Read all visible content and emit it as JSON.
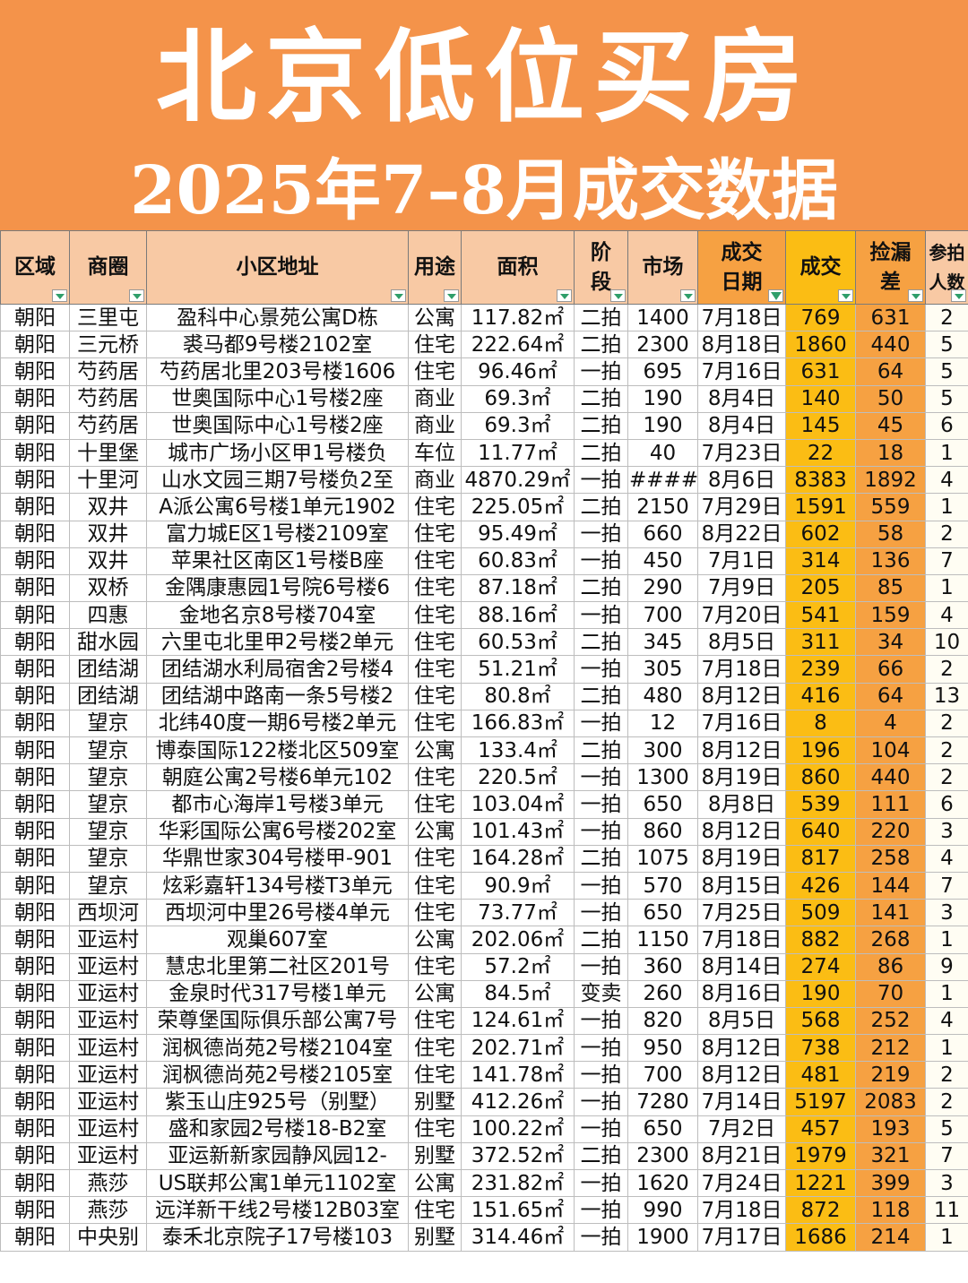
{
  "banner": {
    "title": "北京低位买房",
    "subtitle": "2025年7–8月成交数据"
  },
  "colors": {
    "banner_bg": "#f4934a",
    "header_bg": "#f8c9a4",
    "price_col_bg": "#fbbd14",
    "gap_col_bg": "#f6a142"
  },
  "headers": {
    "area": "区域",
    "district": "商圈",
    "address": "小区地址",
    "usage": "用途",
    "size": "面积",
    "stage_1": "阶",
    "stage_2": "段",
    "market": "市场",
    "date_1": "成交",
    "date_2": "日期",
    "price": "成交",
    "gap_1": "捡漏",
    "gap_2": "差",
    "bidders_1": "参拍",
    "bidders_2": "人数"
  },
  "rows": [
    [
      "朝阳",
      "三里屯",
      "盈科中心景苑公寓D栋",
      "公寓",
      "117.82㎡",
      "二拍",
      "1400",
      "7月18日",
      "769",
      "631",
      "2"
    ],
    [
      "朝阳",
      "三元桥",
      "裘马都9号楼2102室",
      "住宅",
      "222.64㎡",
      "二拍",
      "2300",
      "8月18日",
      "1860",
      "440",
      "5"
    ],
    [
      "朝阳",
      "芍药居",
      "芍药居北里203号楼1606",
      "住宅",
      "96.46㎡",
      "一拍",
      "695",
      "7月16日",
      "631",
      "64",
      "5"
    ],
    [
      "朝阳",
      "芍药居",
      "世奥国际中心1号楼2座",
      "商业",
      "69.3㎡",
      "二拍",
      "190",
      "8月4日",
      "140",
      "50",
      "5"
    ],
    [
      "朝阳",
      "芍药居",
      "世奥国际中心1号楼2座",
      "商业",
      "69.3㎡",
      "二拍",
      "190",
      "8月4日",
      "145",
      "45",
      "6"
    ],
    [
      "朝阳",
      "十里堡",
      "城市广场小区甲1号楼负",
      "车位",
      "11.77㎡",
      "二拍",
      "40",
      "7月23日",
      "22",
      "18",
      "1"
    ],
    [
      "朝阳",
      "十里河",
      "山水文园三期7号楼负2至",
      "商业",
      "4870.29㎡",
      "一拍",
      "####",
      "8月6日",
      "8383",
      "1892",
      "4"
    ],
    [
      "朝阳",
      "双井",
      "A派公寓6号楼1单元1902",
      "住宅",
      "225.05㎡",
      "二拍",
      "2150",
      "7月29日",
      "1591",
      "559",
      "1"
    ],
    [
      "朝阳",
      "双井",
      "富力城E区1号楼2109室",
      "住宅",
      "95.49㎡",
      "一拍",
      "660",
      "8月22日",
      "602",
      "58",
      "2"
    ],
    [
      "朝阳",
      "双井",
      "苹果社区南区1号楼B座",
      "住宅",
      "60.83㎡",
      "一拍",
      "450",
      "7月1日",
      "314",
      "136",
      "7"
    ],
    [
      "朝阳",
      "双桥",
      "金隅康惠园1号院6号楼6",
      "住宅",
      "87.18㎡",
      "二拍",
      "290",
      "7月9日",
      "205",
      "85",
      "1"
    ],
    [
      "朝阳",
      "四惠",
      "金地名京8号楼704室",
      "住宅",
      "88.16㎡",
      "一拍",
      "700",
      "7月20日",
      "541",
      "159",
      "4"
    ],
    [
      "朝阳",
      "甜水园",
      "六里屯北里甲2号楼2单元",
      "住宅",
      "60.53㎡",
      "二拍",
      "345",
      "8月5日",
      "311",
      "34",
      "10"
    ],
    [
      "朝阳",
      "团结湖",
      "团结湖水利局宿舍2号楼4",
      "住宅",
      "51.21㎡",
      "一拍",
      "305",
      "7月18日",
      "239",
      "66",
      "2"
    ],
    [
      "朝阳",
      "团结湖",
      "团结湖中路南一条5号楼2",
      "住宅",
      "80.8㎡",
      "二拍",
      "480",
      "8月12日",
      "416",
      "64",
      "13"
    ],
    [
      "朝阳",
      "望京",
      "北纬40度一期6号楼2单元",
      "住宅",
      "166.83㎡",
      "一拍",
      "12",
      "7月16日",
      "8",
      "4",
      "2"
    ],
    [
      "朝阳",
      "望京",
      "博泰国际122楼北区509室",
      "公寓",
      "133.4㎡",
      "二拍",
      "300",
      "8月12日",
      "196",
      "104",
      "2"
    ],
    [
      "朝阳",
      "望京",
      "朝庭公寓2号楼6单元102",
      "住宅",
      "220.5㎡",
      "一拍",
      "1300",
      "8月19日",
      "860",
      "440",
      "2"
    ],
    [
      "朝阳",
      "望京",
      "都市心海岸1号楼3单元",
      "住宅",
      "103.04㎡",
      "一拍",
      "650",
      "8月8日",
      "539",
      "111",
      "6"
    ],
    [
      "朝阳",
      "望京",
      "华彩国际公寓6号楼202室",
      "公寓",
      "101.43㎡",
      "一拍",
      "860",
      "8月12日",
      "640",
      "220",
      "3"
    ],
    [
      "朝阳",
      "望京",
      "华鼎世家304号楼甲-901",
      "住宅",
      "164.28㎡",
      "二拍",
      "1075",
      "8月19日",
      "817",
      "258",
      "4"
    ],
    [
      "朝阳",
      "望京",
      "炫彩嘉轩134号楼T3单元",
      "住宅",
      "90.9㎡",
      "一拍",
      "570",
      "8月15日",
      "426",
      "144",
      "7"
    ],
    [
      "朝阳",
      "西坝河",
      "西坝河中里26号楼4单元",
      "住宅",
      "73.77㎡",
      "一拍",
      "650",
      "7月25日",
      "509",
      "141",
      "3"
    ],
    [
      "朝阳",
      "亚运村",
      "观巢607室",
      "公寓",
      "202.06㎡",
      "二拍",
      "1150",
      "7月18日",
      "882",
      "268",
      "1"
    ],
    [
      "朝阳",
      "亚运村",
      "慧忠北里第二社区201号",
      "住宅",
      "57.2㎡",
      "一拍",
      "360",
      "8月14日",
      "274",
      "86",
      "9"
    ],
    [
      "朝阳",
      "亚运村",
      "金泉时代317号楼1单元",
      "公寓",
      "84.5㎡",
      "变卖",
      "260",
      "8月16日",
      "190",
      "70",
      "1"
    ],
    [
      "朝阳",
      "亚运村",
      "荣尊堡国际俱乐部公寓7号",
      "住宅",
      "124.61㎡",
      "一拍",
      "820",
      "8月5日",
      "568",
      "252",
      "4"
    ],
    [
      "朝阳",
      "亚运村",
      "润枫德尚苑2号楼2104室",
      "住宅",
      "202.71㎡",
      "一拍",
      "950",
      "8月12日",
      "738",
      "212",
      "1"
    ],
    [
      "朝阳",
      "亚运村",
      "润枫德尚苑2号楼2105室",
      "住宅",
      "141.78㎡",
      "一拍",
      "700",
      "8月12日",
      "481",
      "219",
      "2"
    ],
    [
      "朝阳",
      "亚运村",
      "紫玉山庄925号（别墅）",
      "别墅",
      "412.26㎡",
      "一拍",
      "7280",
      "7月14日",
      "5197",
      "2083",
      "2"
    ],
    [
      "朝阳",
      "亚运村",
      "盛和家园2号楼18-B2室",
      "住宅",
      "100.22㎡",
      "一拍",
      "650",
      "7月2日",
      "457",
      "193",
      "5"
    ],
    [
      "朝阳",
      "亚运村",
      "亚运新新家园静风园12-",
      "别墅",
      "372.52㎡",
      "二拍",
      "2300",
      "8月21日",
      "1979",
      "321",
      "7"
    ],
    [
      "朝阳",
      "燕莎",
      "US联邦公寓1单元1102室",
      "公寓",
      "231.82㎡",
      "一拍",
      "1620",
      "7月24日",
      "1221",
      "399",
      "3"
    ],
    [
      "朝阳",
      "燕莎",
      "远洋新干线2号楼12B03室",
      "住宅",
      "151.65㎡",
      "一拍",
      "990",
      "7月18日",
      "872",
      "118",
      "11"
    ],
    [
      "朝阳",
      "中央别",
      "泰禾北京院子17号楼103",
      "别墅",
      "314.46㎡",
      "一拍",
      "1900",
      "7月17日",
      "1686",
      "214",
      "1"
    ]
  ]
}
